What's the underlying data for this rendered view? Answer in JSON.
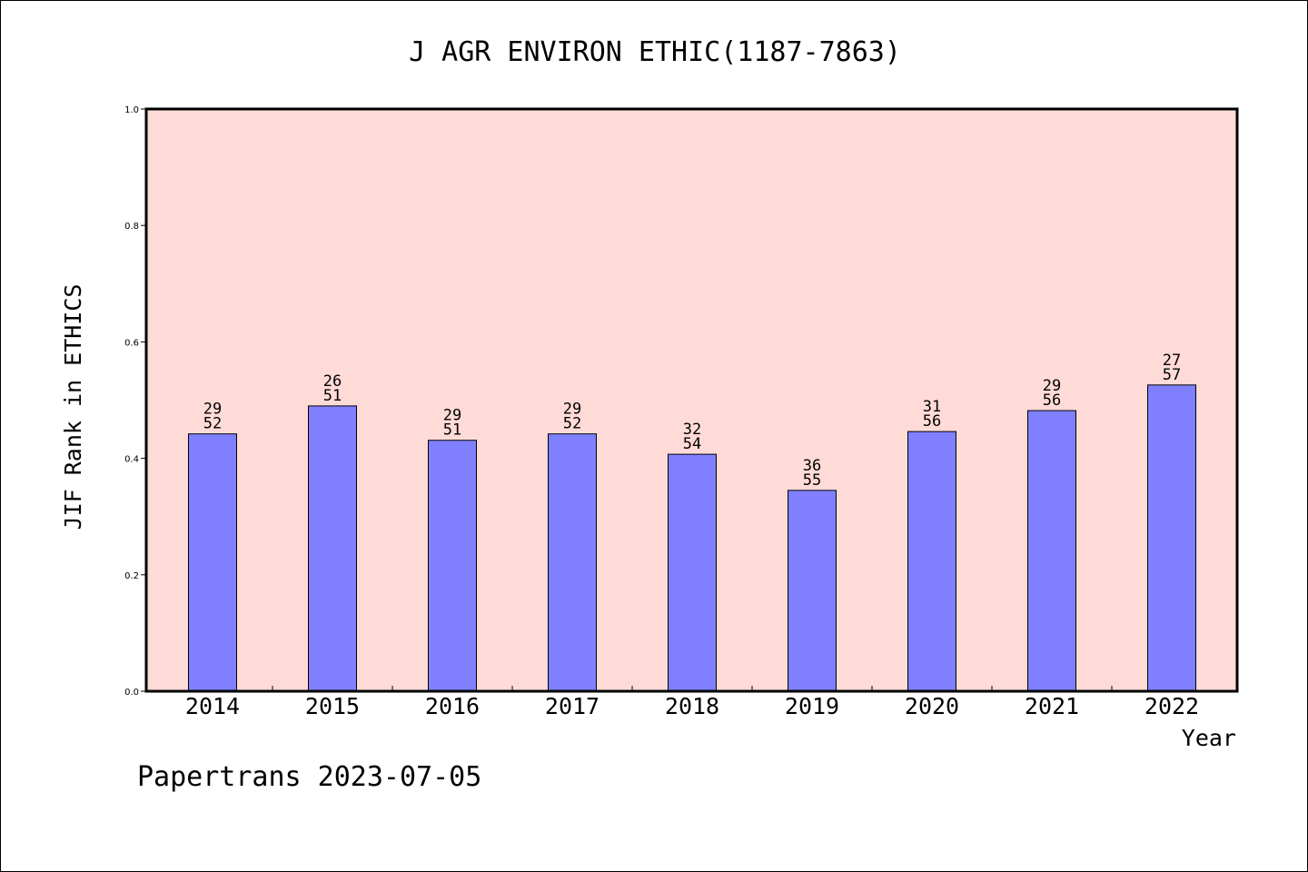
{
  "chart_data": {
    "type": "bar",
    "title": "J AGR ENVIRON ETHIC(1187-7863)",
    "xlabel": "Year",
    "ylabel": "JIF Rank in ETHICS",
    "ylim": [
      0,
      1.0
    ],
    "yticks": [
      "0.0",
      "0.2",
      "0.4",
      "0.6",
      "0.8",
      "1.0"
    ],
    "categories": [
      "2014",
      "2015",
      "2016",
      "2017",
      "2018",
      "2019",
      "2020",
      "2021",
      "2022"
    ],
    "values": [
      0.442,
      0.49,
      0.431,
      0.442,
      0.407,
      0.345,
      0.446,
      0.482,
      0.526
    ],
    "rank": [
      "29",
      "26",
      "29",
      "29",
      "32",
      "36",
      "31",
      "29",
      "27"
    ],
    "total": [
      "52",
      "51",
      "51",
      "52",
      "54",
      "55",
      "56",
      "56",
      "57"
    ],
    "grid": false,
    "colors": {
      "plot_bg": "#ffdbd8",
      "bar": "#8080ff"
    }
  },
  "footer": "Papertrans 2023-07-05"
}
